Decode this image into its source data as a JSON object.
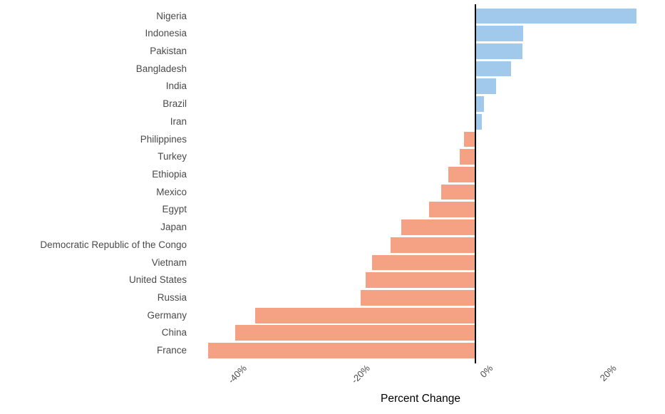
{
  "chart_data": {
    "type": "bar",
    "orientation": "horizontal",
    "title": "",
    "xlabel": "Percent Change",
    "ylabel": "",
    "categories": [
      "Nigeria",
      "Indonesia",
      "Pakistan",
      "Bangladesh",
      "India",
      "Brazil",
      "Iran",
      "Philippines",
      "Turkey",
      "Ethiopia",
      "Mexico",
      "Egypt",
      "Japan",
      "Democratic Republic of the Congo",
      "Vietnam",
      "United States",
      "Russia",
      "Germany",
      "China",
      "France"
    ],
    "values": [
      26.2,
      7.8,
      7.7,
      5.8,
      3.4,
      1.4,
      1.0,
      -1.9,
      -2.5,
      -4.4,
      -5.6,
      -7.5,
      -12.0,
      -13.8,
      -16.8,
      -17.8,
      -18.7,
      -35.8,
      -39.0,
      -43.4
    ],
    "x_ticks": [
      -40,
      -20,
      0,
      20
    ],
    "x_tick_labels": [
      "-40%",
      "-20%",
      "0%",
      "20%"
    ],
    "xlim": [
      -45.6,
      30.8
    ],
    "grid": false,
    "legend": null,
    "zero_line": true,
    "colors": {
      "positive_bar": "#a1c9ec",
      "negative_bar": "#f5a184",
      "zero_line": "#000000",
      "category_text": "#4a4a4a",
      "tick_text": "#4d4d4d",
      "xlabel_text": "#000000"
    }
  }
}
